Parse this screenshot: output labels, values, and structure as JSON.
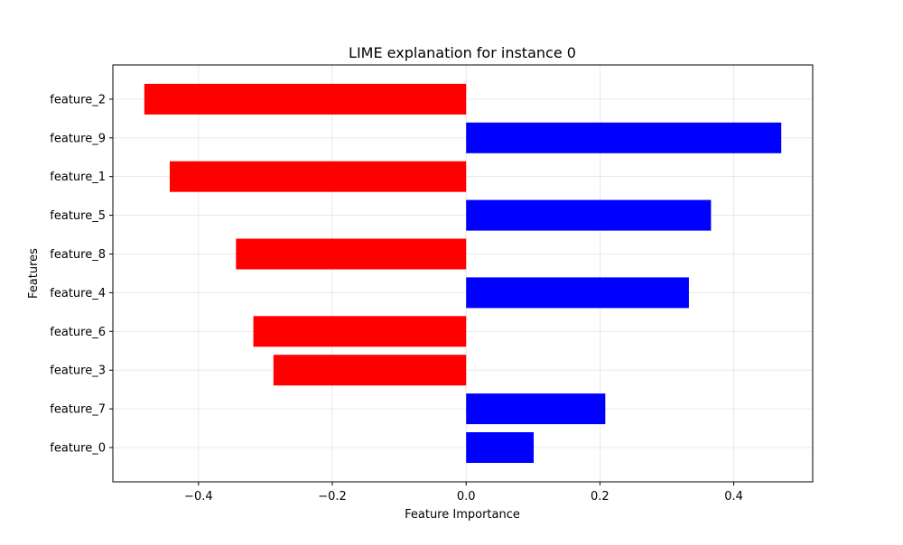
{
  "chart_data": {
    "type": "bar",
    "orientation": "horizontal",
    "title": "LIME explanation for instance 0",
    "xlabel": "Feature Importance",
    "ylabel": "Features",
    "categories": [
      "feature_0",
      "feature_7",
      "feature_3",
      "feature_6",
      "feature_4",
      "feature_8",
      "feature_5",
      "feature_1",
      "feature_9",
      "feature_2"
    ],
    "values": [
      0.101,
      0.208,
      -0.288,
      -0.318,
      0.333,
      -0.344,
      0.366,
      -0.443,
      0.471,
      -0.481
    ],
    "xlim": [
      -0.528,
      0.518
    ],
    "xticks": [
      -0.4,
      -0.2,
      0.0,
      0.2,
      0.4
    ],
    "xtick_labels": [
      "−0.4",
      "−0.2",
      "0.0",
      "0.2",
      "0.4"
    ],
    "grid": true,
    "colors": {
      "positive": "#0000ff",
      "negative": "#ff0000"
    }
  }
}
